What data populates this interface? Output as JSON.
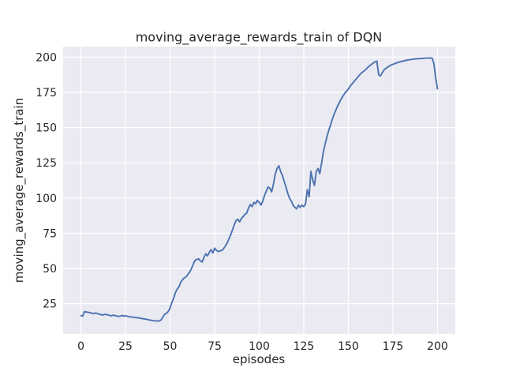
{
  "figure": {
    "title": "moving_average_rewards_train of DQN",
    "xlabel": "episodes",
    "ylabel": "moving_average_rewards_train"
  },
  "style": {
    "line_color": "#4C72B0",
    "plot_bg_color": "#EAEAF2",
    "grid_color": "#FFFFFF",
    "text_color": "#262626",
    "figure_bg_color": "#FFFFFF"
  },
  "chart_data": {
    "type": "line",
    "title": "moving_average_rewards_train of DQN",
    "xlabel": "episodes",
    "ylabel": "moving_average_rewards_train",
    "legend": null,
    "grid": true,
    "x_ticks": [
      0,
      25,
      50,
      75,
      100,
      125,
      150,
      175,
      200
    ],
    "y_ticks": [
      25,
      50,
      75,
      100,
      125,
      150,
      175,
      200
    ],
    "xlim": [
      -10,
      210
    ],
    "ylim": [
      3.5,
      207.5
    ],
    "series": [
      {
        "name": "moving_average_rewards_train of DQN",
        "points": [
          [
            0,
            16.5
          ],
          [
            1,
            16.2
          ],
          [
            2,
            19.4
          ],
          [
            3,
            19.1
          ],
          [
            4,
            18.9
          ],
          [
            5,
            18.7
          ],
          [
            6,
            18.3
          ],
          [
            7,
            18.0
          ],
          [
            8,
            18.4
          ],
          [
            9,
            18.1
          ],
          [
            10,
            17.7
          ],
          [
            11,
            17.3
          ],
          [
            12,
            17.0
          ],
          [
            13,
            17.3
          ],
          [
            14,
            17.5
          ],
          [
            15,
            17.0
          ],
          [
            16,
            16.7
          ],
          [
            17,
            16.4
          ],
          [
            18,
            16.9
          ],
          [
            19,
            16.6
          ],
          [
            20,
            16.3
          ],
          [
            21,
            16.0
          ],
          [
            22,
            16.2
          ],
          [
            23,
            16.6
          ],
          [
            24,
            16.3
          ],
          [
            25,
            16.4
          ],
          [
            26,
            16.1
          ],
          [
            27,
            15.8
          ],
          [
            28,
            15.6
          ],
          [
            29,
            15.5
          ],
          [
            30,
            15.3
          ],
          [
            31,
            15.1
          ],
          [
            32,
            15.0
          ],
          [
            33,
            14.8
          ],
          [
            34,
            14.5
          ],
          [
            35,
            14.3
          ],
          [
            36,
            14.1
          ],
          [
            37,
            13.8
          ],
          [
            38,
            13.6
          ],
          [
            39,
            13.3
          ],
          [
            40,
            13.1
          ],
          [
            41,
            12.9
          ],
          [
            42,
            12.8
          ],
          [
            43,
            12.7
          ],
          [
            44,
            12.7
          ],
          [
            45,
            13.6
          ],
          [
            46,
            15.6
          ],
          [
            47,
            17.5
          ],
          [
            48,
            18.2
          ],
          [
            49,
            19.6
          ],
          [
            50,
            22.0
          ],
          [
            51,
            25.8
          ],
          [
            52,
            28.9
          ],
          [
            53,
            32.8
          ],
          [
            54,
            35.4
          ],
          [
            55,
            37.0
          ],
          [
            56,
            40.3
          ],
          [
            57,
            42.0
          ],
          [
            58,
            43.4
          ],
          [
            59,
            44.0
          ],
          [
            60,
            45.8
          ],
          [
            61,
            47.5
          ],
          [
            62,
            50.0
          ],
          [
            63,
            53.0
          ],
          [
            64,
            55.8
          ],
          [
            65,
            56.4
          ],
          [
            66,
            56.9
          ],
          [
            67,
            55.4
          ],
          [
            68,
            54.6
          ],
          [
            69,
            57.9
          ],
          [
            70,
            60.4
          ],
          [
            71,
            58.9
          ],
          [
            72,
            61.4
          ],
          [
            73,
            63.4
          ],
          [
            74,
            61.0
          ],
          [
            75,
            64.4
          ],
          [
            76,
            62.9
          ],
          [
            77,
            62.0
          ],
          [
            78,
            62.4
          ],
          [
            79,
            62.9
          ],
          [
            80,
            64.0
          ],
          [
            81,
            66.0
          ],
          [
            82,
            68.0
          ],
          [
            83,
            70.9
          ],
          [
            84,
            73.9
          ],
          [
            85,
            77.4
          ],
          [
            86,
            80.9
          ],
          [
            87,
            83.9
          ],
          [
            88,
            85.0
          ],
          [
            89,
            83.1
          ],
          [
            90,
            85.4
          ],
          [
            91,
            86.9
          ],
          [
            92,
            88.4
          ],
          [
            93,
            89.4
          ],
          [
            94,
            92.9
          ],
          [
            95,
            95.4
          ],
          [
            96,
            93.9
          ],
          [
            97,
            96.9
          ],
          [
            98,
            95.9
          ],
          [
            99,
            98.4
          ],
          [
            100,
            96.9
          ],
          [
            101,
            95.0
          ],
          [
            102,
            97.9
          ],
          [
            103,
            101.9
          ],
          [
            104,
            104.9
          ],
          [
            105,
            107.9
          ],
          [
            106,
            106.9
          ],
          [
            107,
            104.4
          ],
          [
            108,
            109.9
          ],
          [
            109,
            116.9
          ],
          [
            110,
            120.9
          ],
          [
            111,
            122.9
          ],
          [
            112,
            118.9
          ],
          [
            113,
            115.9
          ],
          [
            114,
            111.9
          ],
          [
            115,
            107.9
          ],
          [
            116,
            103.4
          ],
          [
            117,
            99.9
          ],
          [
            118,
            97.9
          ],
          [
            119,
            94.9
          ],
          [
            120,
            93.4
          ],
          [
            121,
            92.4
          ],
          [
            122,
            94.9
          ],
          [
            123,
            93.4
          ],
          [
            124,
            94.9
          ],
          [
            125,
            93.9
          ],
          [
            126,
            95.9
          ],
          [
            127,
            105.9
          ],
          [
            128,
            100.9
          ],
          [
            129,
            118.9
          ],
          [
            130,
            112.9
          ],
          [
            131,
            108.9
          ],
          [
            132,
            118.9
          ],
          [
            133,
            120.9
          ],
          [
            134,
            117.4
          ],
          [
            135,
            124.9
          ],
          [
            136,
            132.9
          ],
          [
            137,
            138.4
          ],
          [
            138,
            143.4
          ],
          [
            139,
            147.9
          ],
          [
            140,
            151.9
          ],
          [
            141,
            155.9
          ],
          [
            142,
            159.4
          ],
          [
            143,
            162.4
          ],
          [
            144,
            165.4
          ],
          [
            145,
            167.9
          ],
          [
            146,
            170.4
          ],
          [
            147,
            172.4
          ],
          [
            148,
            174.4
          ],
          [
            149,
            175.9
          ],
          [
            150,
            177.4
          ],
          [
            151,
            179.4
          ],
          [
            152,
            180.9
          ],
          [
            153,
            182.4
          ],
          [
            154,
            183.9
          ],
          [
            155,
            185.4
          ],
          [
            156,
            186.9
          ],
          [
            157,
            188.4
          ],
          [
            158,
            189.4
          ],
          [
            159,
            190.4
          ],
          [
            160,
            191.4
          ],
          [
            161,
            192.9
          ],
          [
            162,
            193.9
          ],
          [
            163,
            194.9
          ],
          [
            164,
            195.9
          ],
          [
            165,
            196.7
          ],
          [
            166,
            197.2
          ],
          [
            167,
            187.4
          ],
          [
            168,
            186.7
          ],
          [
            169,
            188.9
          ],
          [
            170,
            190.9
          ],
          [
            171,
            191.9
          ],
          [
            172,
            192.9
          ],
          [
            173,
            193.7
          ],
          [
            174,
            194.4
          ],
          [
            175,
            194.9
          ],
          [
            176,
            195.4
          ],
          [
            177,
            195.9
          ],
          [
            178,
            196.3
          ],
          [
            179,
            196.7
          ],
          [
            180,
            197.0
          ],
          [
            181,
            197.3
          ],
          [
            182,
            197.6
          ],
          [
            183,
            197.9
          ],
          [
            184,
            198.1
          ],
          [
            185,
            198.3
          ],
          [
            186,
            198.5
          ],
          [
            187,
            198.7
          ],
          [
            188,
            198.8
          ],
          [
            189,
            198.9
          ],
          [
            190,
            199.0
          ],
          [
            191,
            199.1
          ],
          [
            192,
            199.2
          ],
          [
            193,
            199.3
          ],
          [
            194,
            199.3
          ],
          [
            195,
            199.4
          ],
          [
            196,
            199.4
          ],
          [
            197,
            199.4
          ],
          [
            198,
            195.5
          ],
          [
            199,
            185.5
          ],
          [
            200,
            177.5
          ]
        ]
      }
    ]
  }
}
